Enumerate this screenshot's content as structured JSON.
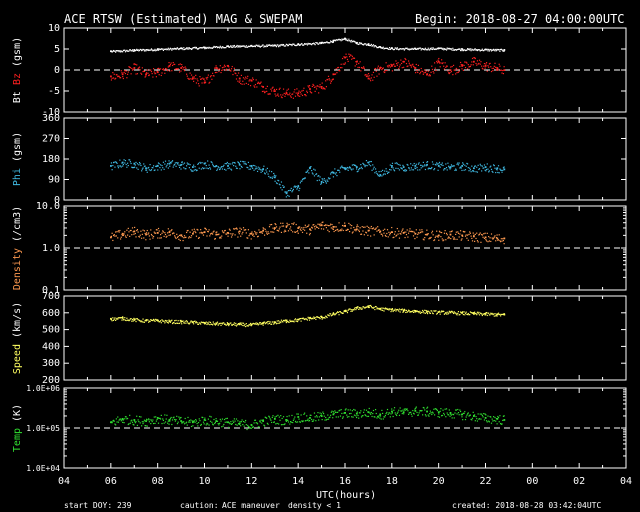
{
  "header": {
    "title": "ACE RTSW (Estimated) MAG & SWEPAM",
    "begin": "Begin: 2018-08-27 04:00:00UTC"
  },
  "footer": {
    "start_doy": "start DOY: 239",
    "caution": "caution:",
    "maneuver": "ACE maneuver",
    "density_note": "density < 1",
    "created": "created: 2018-08-28 03:42:04UTC"
  },
  "colors": {
    "bt": "#ffffff",
    "bz": "#ff2020",
    "phi": "#3fb8e0",
    "density": "#ff9a50",
    "speed": "#ffff60",
    "temp": "#30e030",
    "dashed": "#ffffff",
    "maneuver": "#ff9a50",
    "density_note": "#ffff60"
  },
  "chart_data": [
    {
      "type": "scatter",
      "id": "mag",
      "ylabel_parts": [
        "Bt",
        "Bz",
        "(gsm)"
      ],
      "ylim": [
        -10,
        10
      ],
      "yticks": [
        "10",
        "5",
        "0",
        "-5",
        "-10"
      ],
      "ytick_values": [
        10,
        5,
        0,
        -5,
        -10
      ],
      "reference_line": 0,
      "series": [
        {
          "name": "Bt",
          "x": [
            6,
            7,
            8,
            9,
            10,
            11,
            12,
            13,
            14,
            15,
            15.5,
            16,
            16.5,
            17,
            17.5,
            18,
            19,
            20,
            21,
            22,
            22.8
          ],
          "values": [
            4.5,
            4.8,
            5,
            5.2,
            5.4,
            5.7,
            5.8,
            5.9,
            6.2,
            6.5,
            7,
            7.5,
            6.5,
            6.2,
            5.5,
            5.2,
            5.1,
            5.2,
            5,
            4.9,
            4.8
          ]
        },
        {
          "name": "Bz",
          "x": [
            6,
            6.5,
            7,
            7.5,
            8,
            8.5,
            9,
            9.5,
            10,
            10.5,
            11,
            11.5,
            12,
            12.5,
            13,
            13.5,
            14,
            14.5,
            15,
            15.5,
            16,
            16.5,
            17,
            17.5,
            18,
            18.5,
            19,
            19.5,
            20,
            20.5,
            21,
            21.5,
            22,
            22.5,
            22.8
          ],
          "values": [
            -1.5,
            -1,
            0.5,
            -1,
            -0.5,
            1,
            0.5,
            -2,
            -3,
            0.5,
            1,
            -2,
            -2.5,
            -4,
            -5,
            -5.5,
            -5.5,
            -4.5,
            -4,
            -1,
            3,
            2,
            -2,
            0.5,
            1,
            2,
            0.5,
            -1,
            2,
            0,
            1,
            2,
            1,
            0.5,
            0
          ]
        }
      ]
    },
    {
      "type": "scatter",
      "id": "phi",
      "ylabel_parts": [
        "Phi",
        "(gsm)"
      ],
      "ylim": [
        0,
        360
      ],
      "yticks": [
        "360",
        "270",
        "180",
        "90",
        "0"
      ],
      "ytick_values": [
        360,
        270,
        180,
        90,
        0
      ],
      "series": [
        {
          "name": "Phi",
          "x": [
            6,
            6.5,
            7,
            7.5,
            8,
            8.5,
            9,
            9.5,
            10,
            10.5,
            11,
            11.5,
            12,
            12.5,
            13,
            13.5,
            14,
            14.5,
            15,
            15.5,
            16,
            16.5,
            17,
            17.5,
            18,
            18.5,
            19,
            19.5,
            20,
            20.5,
            21,
            21.5,
            22,
            22.5,
            22.8
          ],
          "values": [
            150,
            165,
            160,
            140,
            150,
            160,
            155,
            145,
            160,
            150,
            150,
            155,
            150,
            135,
            100,
            30,
            60,
            140,
            80,
            120,
            140,
            145,
            165,
            110,
            150,
            145,
            150,
            155,
            150,
            145,
            150,
            140,
            145,
            140,
            135
          ]
        }
      ]
    },
    {
      "type": "scatter",
      "id": "density",
      "ylabel_parts": [
        "Density",
        "(/cm3)"
      ],
      "yscale": "log",
      "ylim": [
        0.1,
        10
      ],
      "yticks": [
        "10.0",
        "1.0",
        "0.1"
      ],
      "ytick_values": [
        10,
        1,
        0.1
      ],
      "reference_line": 1,
      "series": [
        {
          "name": "Density",
          "x": [
            6,
            6.5,
            7,
            7.5,
            8,
            8.5,
            9,
            9.5,
            10,
            10.5,
            11,
            11.5,
            12,
            12.5,
            13,
            13.5,
            14,
            14.5,
            15,
            15.5,
            16,
            16.5,
            17,
            17.5,
            18,
            18.5,
            19,
            19.5,
            20,
            20.5,
            21,
            21.5,
            22,
            22.5,
            22.8
          ],
          "values": [
            1.8,
            2.2,
            2.5,
            2.1,
            2.3,
            2.4,
            2.0,
            2.2,
            2.4,
            2.1,
            2.3,
            2.5,
            2.2,
            2.6,
            3.0,
            3.3,
            3.0,
            2.8,
            3.5,
            3.2,
            3.4,
            2.8,
            2.6,
            2.5,
            2.4,
            2.3,
            2.2,
            2.1,
            2.0,
            2.1,
            2.0,
            1.9,
            1.8,
            1.7,
            1.7
          ]
        }
      ]
    },
    {
      "type": "scatter",
      "id": "speed",
      "ylabel_parts": [
        "Speed",
        "(km/s)"
      ],
      "ylim": [
        200,
        700
      ],
      "yticks": [
        "700",
        "600",
        "500",
        "400",
        "300",
        "200"
      ],
      "ytick_values": [
        700,
        600,
        500,
        400,
        300,
        200
      ],
      "series": [
        {
          "name": "Speed",
          "x": [
            6,
            6.5,
            7,
            7.5,
            8,
            8.5,
            9,
            9.5,
            10,
            10.5,
            11,
            11.5,
            12,
            12.5,
            13,
            13.5,
            14,
            14.5,
            15,
            15.5,
            16,
            16.5,
            17,
            17.5,
            18,
            18.5,
            19,
            19.5,
            20,
            20.5,
            21,
            21.5,
            22,
            22.5,
            22.8
          ],
          "values": [
            565,
            570,
            560,
            555,
            555,
            550,
            548,
            545,
            540,
            538,
            535,
            533,
            530,
            540,
            545,
            555,
            560,
            570,
            575,
            595,
            610,
            630,
            640,
            625,
            620,
            615,
            612,
            608,
            605,
            603,
            600,
            598,
            595,
            592,
            590
          ]
        }
      ]
    },
    {
      "type": "scatter",
      "id": "temp",
      "ylabel_parts": [
        "Temp",
        "(K)"
      ],
      "yscale": "log",
      "ylim": [
        10000,
        1000000
      ],
      "yticks": [
        "1.0E+06",
        "1.0E+05",
        "1.0E+04"
      ],
      "ytick_values": [
        1000000,
        100000,
        10000
      ],
      "reference_line": 100000,
      "series": [
        {
          "name": "Temp",
          "x": [
            6,
            6.5,
            7,
            7.5,
            8,
            8.5,
            9,
            9.5,
            10,
            10.5,
            11,
            11.5,
            12,
            12.5,
            13,
            13.5,
            14,
            14.5,
            15,
            15.5,
            16,
            16.5,
            17,
            17.5,
            18,
            18.5,
            19,
            19.5,
            20,
            20.5,
            21,
            21.5,
            22,
            22.5,
            22.8
          ],
          "values": [
            140000,
            170000,
            160000,
            150000,
            180000,
            160000,
            150000,
            140000,
            160000,
            150000,
            140000,
            130000,
            120000,
            150000,
            170000,
            160000,
            190000,
            180000,
            200000,
            220000,
            240000,
            230000,
            250000,
            220000,
            260000,
            250000,
            270000,
            260000,
            250000,
            240000,
            220000,
            200000,
            180000,
            170000,
            160000
          ]
        }
      ]
    }
  ],
  "xaxis": {
    "label": "UTC(hours)",
    "ticks": [
      "04",
      "06",
      "08",
      "10",
      "12",
      "14",
      "16",
      "18",
      "20",
      "22",
      "00",
      "02",
      "04"
    ],
    "range_hours": [
      4,
      28
    ]
  }
}
